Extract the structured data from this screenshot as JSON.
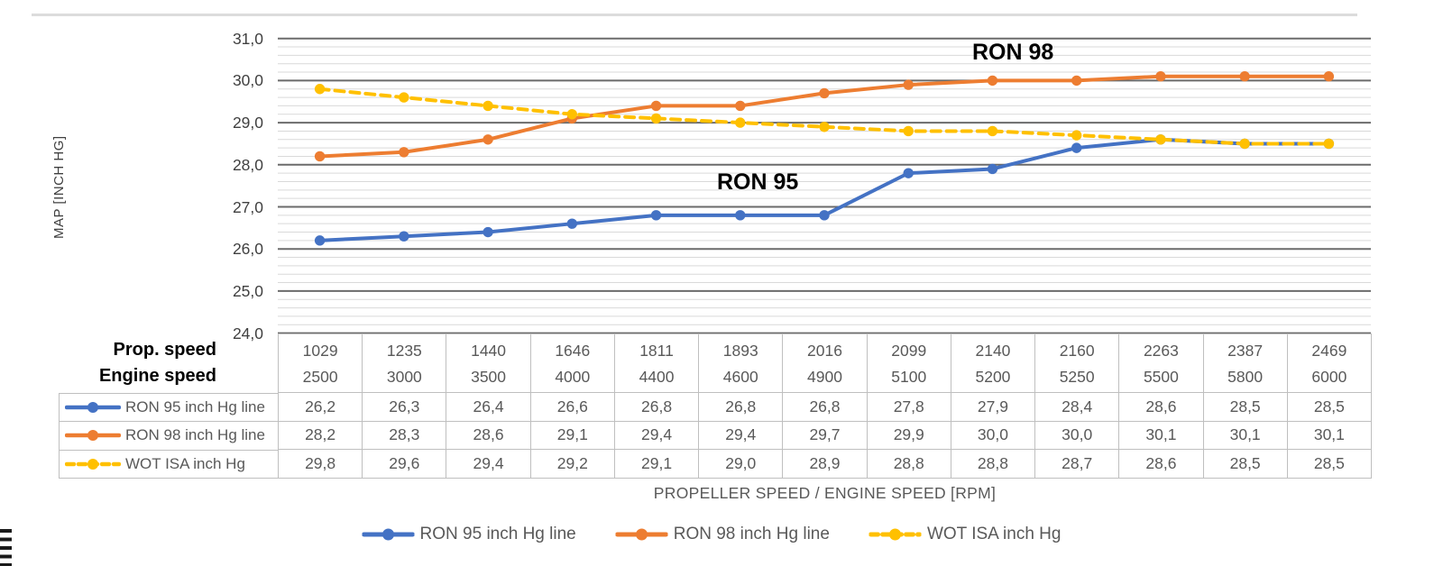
{
  "chart_data": {
    "type": "line",
    "title": "",
    "xlabel": "PROPELLER SPEED / ENGINE SPEED [RPM]",
    "ylabel": "MAP [INCH HG]",
    "ylim": [
      24.0,
      31.0
    ],
    "y_major_step": 1.0,
    "y_minor_step": 0.2,
    "ytick_labels": [
      "31,0",
      "30,0",
      "29,0",
      "28,0",
      "27,0",
      "26,0",
      "25,0",
      "24,0"
    ],
    "decimal_separator": ",",
    "grid": "horizontal-major-and-minor",
    "legend_position": "bottom",
    "x_categories": {
      "prop_speed_label": "Prop. speed",
      "engine_speed_label": "Engine speed",
      "prop_speed": [
        1029,
        1235,
        1440,
        1646,
        1811,
        1893,
        2016,
        2099,
        2140,
        2160,
        2263,
        2387,
        2469
      ],
      "engine_speed": [
        2500,
        3000,
        3500,
        4000,
        4400,
        4600,
        4900,
        5100,
        5200,
        5250,
        5500,
        5800,
        6000
      ]
    },
    "series": [
      {
        "name": "RON 95 inch Hg line",
        "color": "#4472C4",
        "line_style": "solid",
        "marker": "circle",
        "values": [
          26.2,
          26.3,
          26.4,
          26.6,
          26.8,
          26.8,
          26.8,
          27.8,
          27.9,
          28.4,
          28.6,
          28.5,
          28.5
        ]
      },
      {
        "name": "RON 98 inch Hg line",
        "color": "#ED7D31",
        "line_style": "solid",
        "marker": "circle",
        "values": [
          28.2,
          28.3,
          28.6,
          29.1,
          29.4,
          29.4,
          29.7,
          29.9,
          30.0,
          30.0,
          30.1,
          30.1,
          30.1
        ]
      },
      {
        "name": "WOT ISA inch Hg",
        "color": "#FFC000",
        "line_style": "dashed",
        "marker": "circle",
        "values": [
          29.8,
          29.6,
          29.4,
          29.2,
          29.1,
          29.0,
          28.9,
          28.8,
          28.8,
          28.7,
          28.6,
          28.5,
          28.5
        ]
      }
    ],
    "annotations": [
      {
        "text": "RON 98"
      },
      {
        "text": "RON 95"
      }
    ],
    "gridline_major_color": "#6b6b6b",
    "gridline_minor_color": "#d9d9d9",
    "table_border_color": "#bfbfbf"
  },
  "table": {
    "prop_label": "Prop. speed",
    "engine_label": "Engine speed"
  }
}
